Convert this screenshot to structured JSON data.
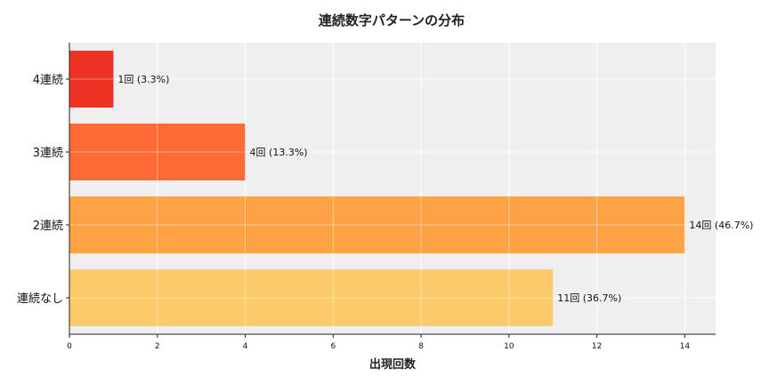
{
  "chart_data": {
    "type": "bar",
    "orientation": "horizontal",
    "title": "連続数字パターンの分布",
    "xlabel": "出現回数",
    "ylabel": "",
    "categories": [
      "連続なし",
      "2連続",
      "3連続",
      "4連続"
    ],
    "values": [
      11,
      14,
      4,
      1
    ],
    "data_labels": [
      "11回 (36.7%)",
      "14回 (46.7%)",
      "4回 (13.3%)",
      "1回 (3.3%)"
    ],
    "colors": [
      "#fecb6b",
      "#fea246",
      "#fd6a33",
      "#f03224"
    ],
    "xlim": [
      0,
      14.7
    ],
    "xticks": [
      0,
      2,
      4,
      6,
      8,
      10,
      12,
      14
    ],
    "grid": true,
    "background": "#efefef"
  }
}
